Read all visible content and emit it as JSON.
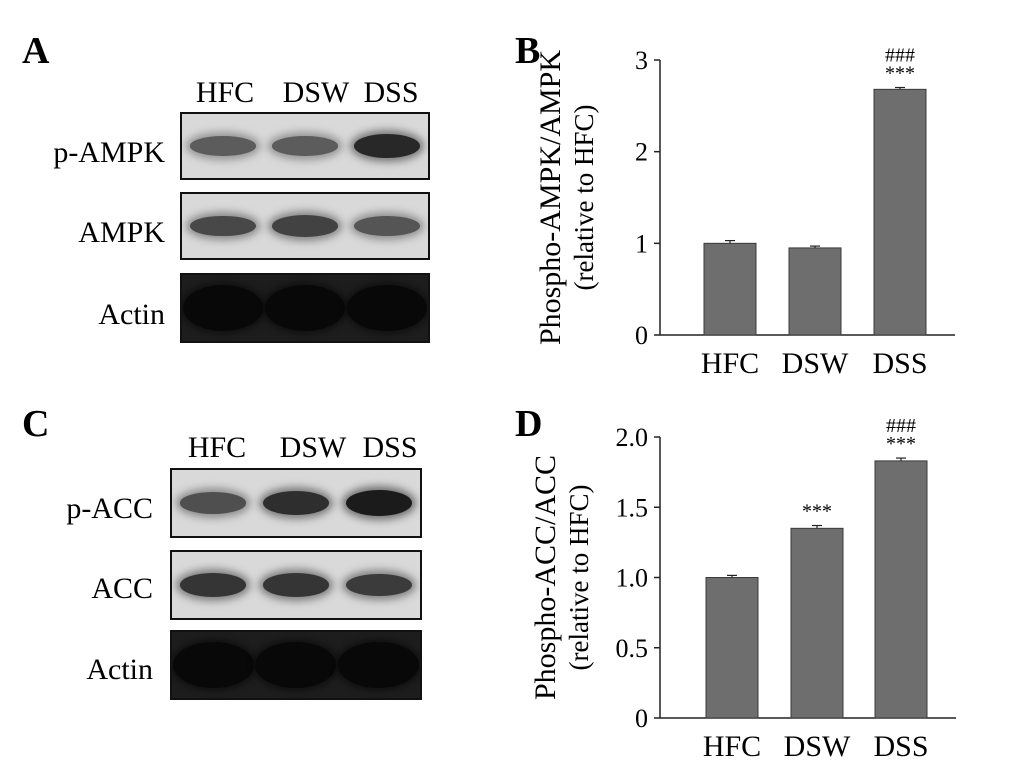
{
  "panels": {
    "a": {
      "letter": "A",
      "lanes": [
        "HFC",
        "DSW",
        "DSS"
      ],
      "rows": [
        {
          "label": "p-AMPK"
        },
        {
          "label": "AMPK"
        },
        {
          "label": "Actin"
        }
      ]
    },
    "b": {
      "letter": "B"
    },
    "c": {
      "letter": "C",
      "lanes": [
        "HFC",
        "DSW",
        "DSS"
      ],
      "rows": [
        {
          "label": "p-ACC"
        },
        {
          "label": "ACC"
        },
        {
          "label": "Actin"
        }
      ]
    },
    "d": {
      "letter": "D"
    }
  },
  "blot_band_intensity": {
    "a": [
      [
        0.45,
        0.45,
        0.85
      ],
      [
        0.6,
        0.65,
        0.5
      ],
      [
        1.0,
        1.0,
        1.0
      ]
    ],
    "c": [
      [
        0.55,
        0.8,
        0.95
      ],
      [
        0.75,
        0.75,
        0.7
      ],
      [
        1.0,
        1.0,
        1.0
      ]
    ]
  },
  "colors": {
    "bar_fill": "#6e6e6e",
    "bar_stroke": "#3a3a3a"
  },
  "chart_data": [
    {
      "type": "bar",
      "title": "",
      "xlabel": "",
      "ylabel": "Phospho-AMPK/AMPK",
      "ylabel_sub": "(relative to HFC)",
      "categories": [
        "HFC",
        "DSW",
        "DSS"
      ],
      "values": [
        1.0,
        0.95,
        2.68
      ],
      "errors": [
        0.03,
        0.02,
        0.02
      ],
      "annotations": [
        "",
        "",
        "***"
      ],
      "annotations2": [
        "",
        "",
        "###"
      ],
      "ylim": [
        0,
        3
      ],
      "yticks": [
        0,
        1,
        2,
        3
      ],
      "ytick_labels": [
        "0",
        "1",
        "2",
        "3"
      ],
      "grid": false
    },
    {
      "type": "bar",
      "title": "",
      "xlabel": "",
      "ylabel": "Phospho-ACC/ACC",
      "ylabel_sub": "(relative to HFC)",
      "categories": [
        "HFC",
        "DSW",
        "DSS"
      ],
      "values": [
        1.0,
        1.35,
        1.83
      ],
      "errors": [
        0.015,
        0.02,
        0.02
      ],
      "annotations": [
        "",
        "***",
        "***"
      ],
      "annotations2": [
        "",
        "",
        "###"
      ],
      "ylim": [
        0,
        2.0
      ],
      "yticks": [
        0,
        0.5,
        1.0,
        1.5,
        2.0
      ],
      "ytick_labels": [
        "0",
        "0.5",
        "1.0",
        "1.5",
        "2.0"
      ],
      "grid": false
    }
  ]
}
